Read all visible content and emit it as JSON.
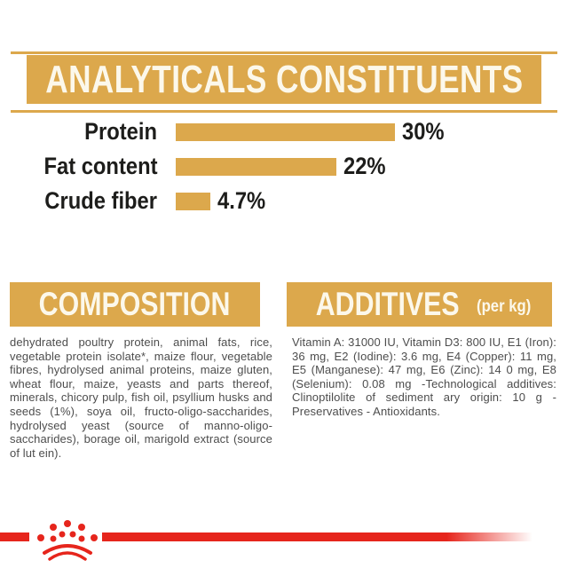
{
  "header": {
    "title": "ANALYTICALS CONSTITUENTS"
  },
  "chart_data": {
    "type": "bar",
    "orientation": "horizontal",
    "title": "ANALYTICALS CONSTITUENTS",
    "categories": [
      "Protein",
      "Fat content",
      "Crude fiber"
    ],
    "values": [
      30,
      22,
      4.7
    ],
    "value_labels": [
      "30%",
      "22%",
      "4.7%"
    ],
    "unit": "%",
    "xlim": [
      0,
      30
    ],
    "grid": false,
    "legend": "none",
    "bar_color": "#DCA84C"
  },
  "sections": {
    "composition": {
      "title": "COMPOSITION",
      "body": "dehydrated poultry protein, animal fats, rice, vegetable protein isolate*, maize flour, vegetable fibres, hydrolysed animal proteins, maize gluten, wheat flour, maize, yeasts and parts thereof, minerals, chicory pulp, fish oil, psyllium husks and seeds (1%), soya oil, fructo-oligo-saccharides, hydrolysed yeast (source of manno-oligo-saccharides), borage oil, marigold extract (source of lut ein)."
    },
    "additives": {
      "title": "ADDITIVES",
      "title_suffix": "(per kg)",
      "body": "Vitamin A: 31000 IU, Vitamin D3: 800 IU, E1 (Iron): 36 mg, E2 (Iodine): 3.6 mg, E4 (Copper): 11 mg, E5 (Manganese): 47 mg, E6 (Zinc): 14 0 mg, E8 (Selenium): 0.08 mg -Technological additives: Clinoptilolite of sediment ary origin: 10 g - Preservatives - Antioxidants."
    }
  },
  "footer": {
    "logo": "royal-canin-crown"
  },
  "colors": {
    "gold": "#DCA84C",
    "red": "#E6251C",
    "heading_text": "#FCF8EB",
    "label_ink": "#1D1D1B",
    "body_ink": "#4D4D4D"
  }
}
